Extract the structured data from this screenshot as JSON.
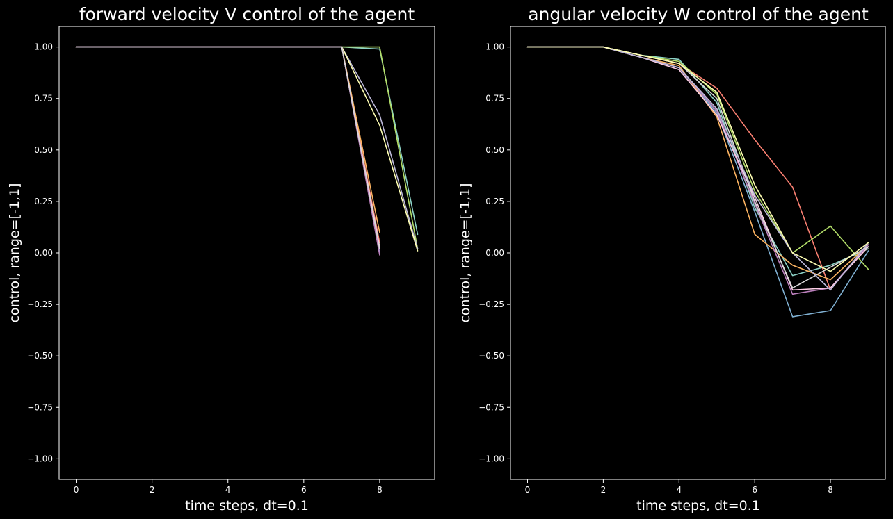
{
  "chart_data": [
    {
      "type": "line",
      "title": "forward velocity V control of the agent",
      "xlabel": "time steps, dt=0.1",
      "ylabel": "control, range=[-1,1]",
      "xlim": [
        -0.45,
        9.45
      ],
      "ylim": [
        -1.1,
        1.1
      ],
      "xticks": [
        0,
        2,
        4,
        6,
        8
      ],
      "yticks": [
        -1.0,
        -0.75,
        -0.5,
        -0.25,
        0.0,
        0.25,
        0.5,
        0.75,
        1.0
      ],
      "grid": false,
      "series": [
        {
          "color": "#8dd3c7",
          "x": [
            0,
            1,
            2,
            3,
            4,
            5,
            6,
            7,
            8,
            9
          ],
          "y": [
            1,
            1,
            1,
            1,
            1,
            1,
            1,
            1,
            0.99,
            0.09
          ]
        },
        {
          "color": "#b3de69",
          "x": [
            0,
            1,
            2,
            3,
            4,
            5,
            6,
            7,
            8,
            9
          ],
          "y": [
            1,
            1,
            1,
            1,
            1,
            1,
            1,
            1,
            1.0,
            0.02
          ]
        },
        {
          "color": "#bebada",
          "x": [
            0,
            1,
            2,
            3,
            4,
            5,
            6,
            7,
            8,
            9
          ],
          "y": [
            1,
            1,
            1,
            1,
            1,
            1,
            1,
            1,
            0.67,
            0.02
          ]
        },
        {
          "color": "#ffffb3",
          "x": [
            0,
            1,
            2,
            3,
            4,
            5,
            6,
            7,
            8,
            9
          ],
          "y": [
            1,
            1,
            1,
            1,
            1,
            1,
            1,
            1,
            0.62,
            0.01
          ]
        },
        {
          "color": "#fb8072",
          "x": [
            0,
            1,
            2,
            3,
            4,
            5,
            6,
            7,
            8
          ],
          "y": [
            1,
            1,
            1,
            1,
            1,
            1,
            1,
            1,
            0.05
          ]
        },
        {
          "color": "#fdb462",
          "x": [
            0,
            1,
            2,
            3,
            4,
            5,
            6,
            7,
            8
          ],
          "y": [
            1,
            1,
            1,
            1,
            1,
            1,
            1,
            1,
            0.1
          ]
        },
        {
          "color": "#80b1d3",
          "x": [
            0,
            1,
            2,
            3,
            4,
            5,
            6,
            7,
            8
          ],
          "y": [
            1,
            1,
            1,
            1,
            1,
            1,
            1,
            1,
            0.0
          ]
        },
        {
          "color": "#fccde5",
          "x": [
            0,
            1,
            2,
            3,
            4,
            5,
            6,
            7,
            8
          ],
          "y": [
            1,
            1,
            1,
            1,
            1,
            1,
            1,
            1,
            0.03
          ]
        },
        {
          "color": "#bc80bd",
          "x": [
            0,
            1,
            2,
            3,
            4,
            5,
            6,
            7,
            8
          ],
          "y": [
            1,
            1,
            1,
            1,
            1,
            1,
            1,
            1,
            -0.01
          ]
        },
        {
          "color": "#d9d9d9",
          "x": [
            0,
            1,
            2,
            3,
            4,
            5,
            6,
            7,
            8
          ],
          "y": [
            1,
            1,
            1,
            1,
            1,
            1,
            1,
            1,
            0.02
          ]
        }
      ]
    },
    {
      "type": "line",
      "title": "angular velocity W control of the agent",
      "xlabel": "time steps, dt=0.1",
      "ylabel": "control, range=[-1,1]",
      "xlim": [
        -0.45,
        9.45
      ],
      "ylim": [
        -1.1,
        1.1
      ],
      "xticks": [
        0,
        2,
        4,
        6,
        8
      ],
      "yticks": [
        -1.0,
        -0.75,
        -0.5,
        -0.25,
        0.0,
        0.25,
        0.5,
        0.75,
        1.0
      ],
      "grid": false,
      "series": [
        {
          "color": "#fb8072",
          "x": [
            0,
            1,
            2,
            3,
            4,
            5,
            6,
            7,
            8
          ],
          "y": [
            1,
            1,
            1,
            0.96,
            0.92,
            0.8,
            0.55,
            0.32,
            -0.18
          ]
        },
        {
          "color": "#80b1d3",
          "x": [
            0,
            1,
            2,
            3,
            4,
            5,
            6,
            7,
            8,
            9
          ],
          "y": [
            1,
            1,
            1,
            0.95,
            0.9,
            0.68,
            0.2,
            -0.31,
            -0.28,
            0.01
          ]
        },
        {
          "color": "#8dd3c7",
          "x": [
            0,
            1,
            2,
            3,
            4,
            5,
            6,
            7,
            8,
            9
          ],
          "y": [
            1,
            1,
            1,
            0.96,
            0.94,
            0.73,
            0.22,
            -0.11,
            -0.06,
            0.02
          ]
        },
        {
          "color": "#b3de69",
          "x": [
            0,
            1,
            2,
            3,
            4,
            5,
            6,
            7,
            8,
            9
          ],
          "y": [
            1,
            1,
            1,
            0.96,
            0.93,
            0.77,
            0.3,
            0.0,
            0.13,
            -0.08
          ]
        },
        {
          "color": "#fdb462",
          "x": [
            0,
            1,
            2,
            3,
            4,
            5,
            6,
            7,
            8,
            9
          ],
          "y": [
            1,
            1,
            1,
            0.95,
            0.91,
            0.66,
            0.09,
            -0.06,
            -0.13,
            0.04
          ]
        },
        {
          "color": "#bc80bd",
          "x": [
            0,
            1,
            2,
            3,
            4,
            5,
            6,
            7,
            8,
            9
          ],
          "y": [
            1,
            1,
            1,
            0.95,
            0.9,
            0.69,
            0.24,
            -0.2,
            -0.17,
            0.04
          ]
        },
        {
          "color": "#fccde5",
          "x": [
            0,
            1,
            2,
            3,
            4,
            5,
            6,
            7,
            8,
            9
          ],
          "y": [
            1,
            1,
            1,
            0.95,
            0.89,
            0.67,
            0.27,
            -0.18,
            -0.17,
            0.03
          ]
        },
        {
          "color": "#d9d9d9",
          "x": [
            0,
            1,
            2,
            3,
            4,
            5,
            6,
            7,
            8,
            9
          ],
          "y": [
            1,
            1,
            1,
            0.96,
            0.92,
            0.75,
            0.25,
            -0.17,
            -0.07,
            0.03
          ]
        },
        {
          "color": "#bebada",
          "x": [
            0,
            1,
            2,
            3,
            4,
            5,
            6,
            7,
            8,
            9
          ],
          "y": [
            1,
            1,
            1,
            0.95,
            0.9,
            0.7,
            0.28,
            0.0,
            -0.18,
            0.05
          ]
        },
        {
          "color": "#ffffb3",
          "x": [
            0,
            1,
            2,
            3,
            4,
            5,
            6,
            7,
            8,
            9
          ],
          "y": [
            1,
            1,
            1,
            0.96,
            0.92,
            0.78,
            0.33,
            0.0,
            -0.09,
            0.05
          ]
        }
      ]
    }
  ]
}
